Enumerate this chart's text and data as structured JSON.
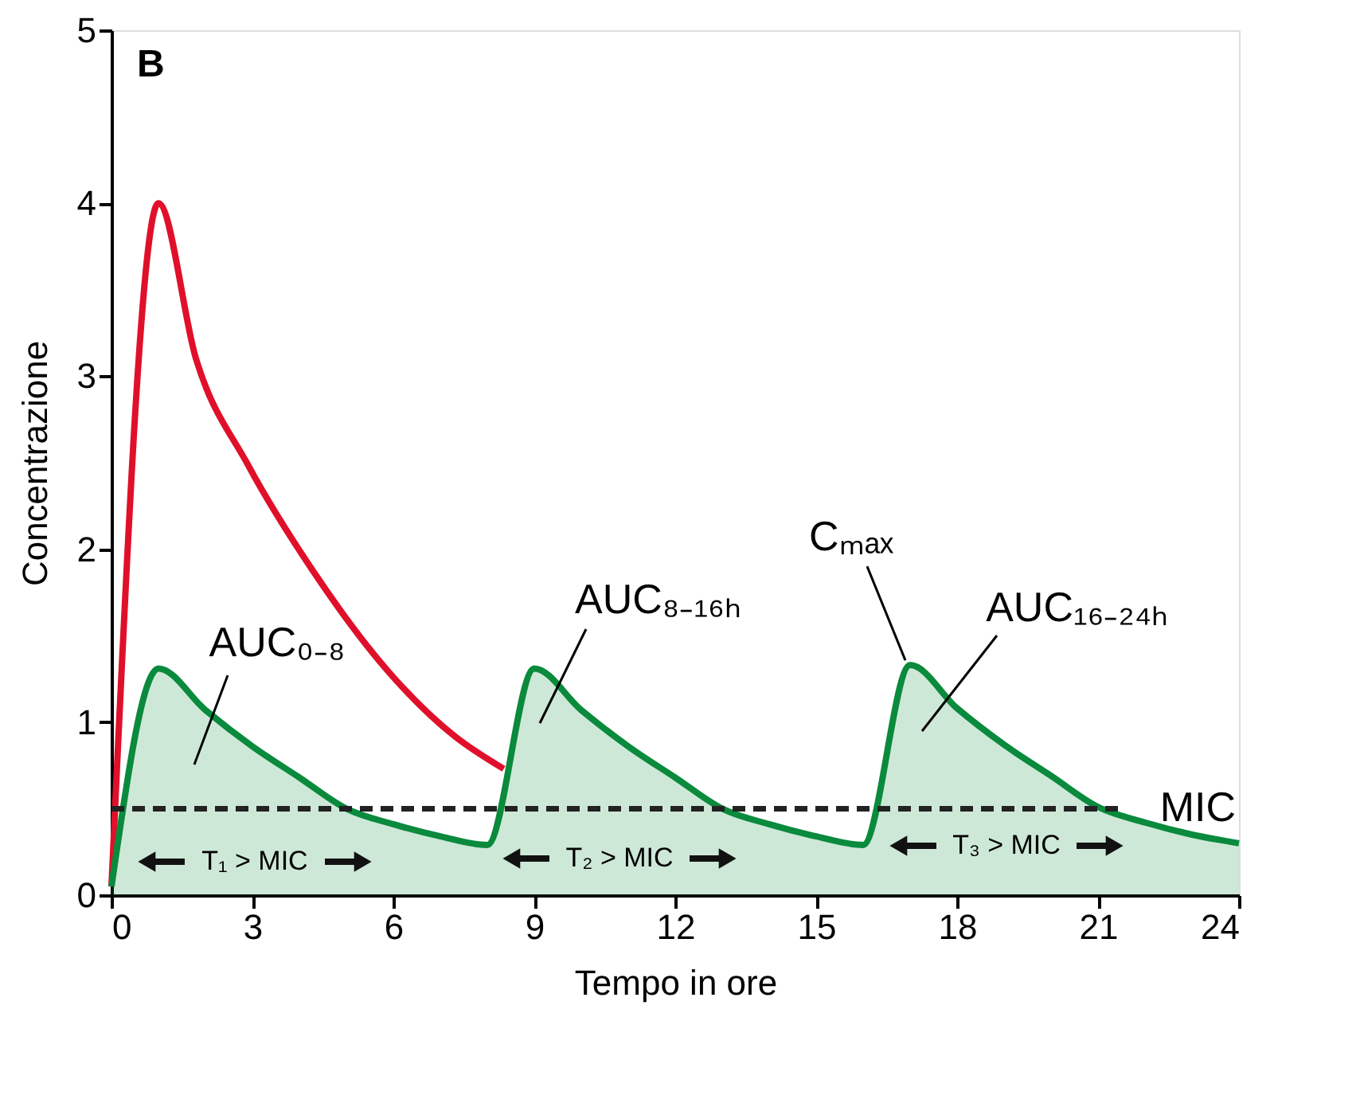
{
  "chart_data": {
    "type": "line",
    "xlabel": "Tempo in ore",
    "ylabel": "Concentrazione",
    "xlim": [
      0,
      24
    ],
    "xticks": [
      0,
      3,
      6,
      9,
      12,
      15,
      18,
      21,
      24
    ],
    "ylim": [
      0,
      5
    ],
    "yticks": [
      0,
      1,
      2,
      3,
      4,
      5
    ],
    "grid": false,
    "line_style": "solid",
    "marker": "none",
    "series": [
      {
        "color": "#e0102a",
        "x": [
          0,
          1,
          1.8,
          2.9,
          4.3,
          6,
          7.3,
          8.35
        ],
        "values": [
          0.05,
          4.0,
          3.1,
          2.49,
          1.87,
          1.26,
          0.92,
          0.73
        ]
      },
      {
        "type": "area",
        "color": "#0a8a3c",
        "x": [
          0,
          1,
          2,
          3,
          4,
          5,
          6,
          7,
          8,
          9,
          10,
          11,
          12,
          13,
          14,
          15,
          16,
          17,
          18,
          19,
          20,
          21,
          22,
          23,
          24
        ],
        "values": [
          0.05,
          1.31,
          1.07,
          0.86,
          0.68,
          0.5,
          0.41,
          0.34,
          0.29,
          1.31,
          1.07,
          0.86,
          0.68,
          0.5,
          0.41,
          0.34,
          0.29,
          1.33,
          1.08,
          0.87,
          0.69,
          0.51,
          0.42,
          0.35,
          0.3
        ]
      }
    ],
    "ref_lines": [
      {
        "axis": "y",
        "value": 0.5,
        "label": "MIC",
        "color": "#222222",
        "line_style": "dashed"
      }
    ],
    "annotations": [
      "B",
      "AUC₀₋₈",
      "AUC₈₋₁₆ₕ",
      {
        "text": "Cₘₐₓ",
        "x": 17,
        "y": 1.33
      },
      "AUC₁₆₋₂₄ₕ",
      "T₁ > MIC",
      "T₂ > MIC",
      "T₃ > MIC"
    ]
  }
}
